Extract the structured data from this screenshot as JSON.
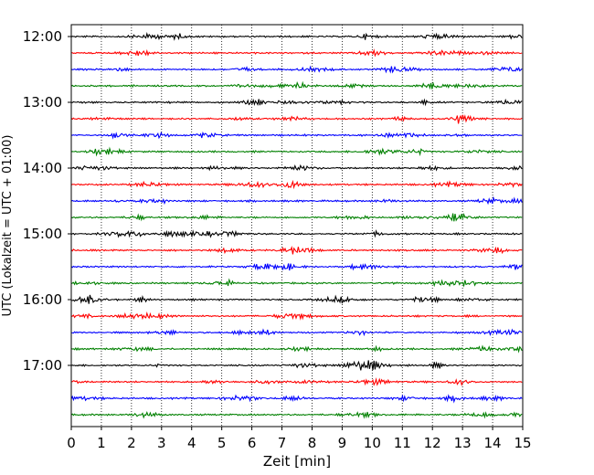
{
  "chart_data": {
    "type": "line",
    "title": "",
    "xlabel": "Zeit  [min]",
    "ylabel": "UTC (Lokalzeit = UTC + 01:00)",
    "xlim": [
      0,
      15
    ],
    "x_ticks": [
      "0",
      "1",
      "2",
      "3",
      "4",
      "5",
      "6",
      "7",
      "8",
      "9",
      "10",
      "11",
      "12",
      "13",
      "14",
      "15"
    ],
    "y_ticks": [
      "12:00",
      "13:00",
      "14:00",
      "15:00",
      "16:00",
      "17:00"
    ],
    "grid": "vertical dotted",
    "trace_colors": [
      "#000000",
      "#ff0000",
      "#0000ff",
      "#008000"
    ],
    "traces": [
      {
        "start": "12:00"
      },
      {
        "start": "12:15"
      },
      {
        "start": "12:30"
      },
      {
        "start": "12:45"
      },
      {
        "start": "13:00"
      },
      {
        "start": "13:15"
      },
      {
        "start": "13:30"
      },
      {
        "start": "13:45"
      },
      {
        "start": "14:00"
      },
      {
        "start": "14:15"
      },
      {
        "start": "14:30"
      },
      {
        "start": "14:45"
      },
      {
        "start": "15:00"
      },
      {
        "start": "15:15"
      },
      {
        "start": "15:30"
      },
      {
        "start": "15:45"
      },
      {
        "start": "16:00"
      },
      {
        "start": "16:15"
      },
      {
        "start": "16:30"
      },
      {
        "start": "16:45"
      },
      {
        "start": "17:00"
      },
      {
        "start": "17:15"
      },
      {
        "start": "17:30"
      },
      {
        "start": "17:45"
      }
    ]
  }
}
